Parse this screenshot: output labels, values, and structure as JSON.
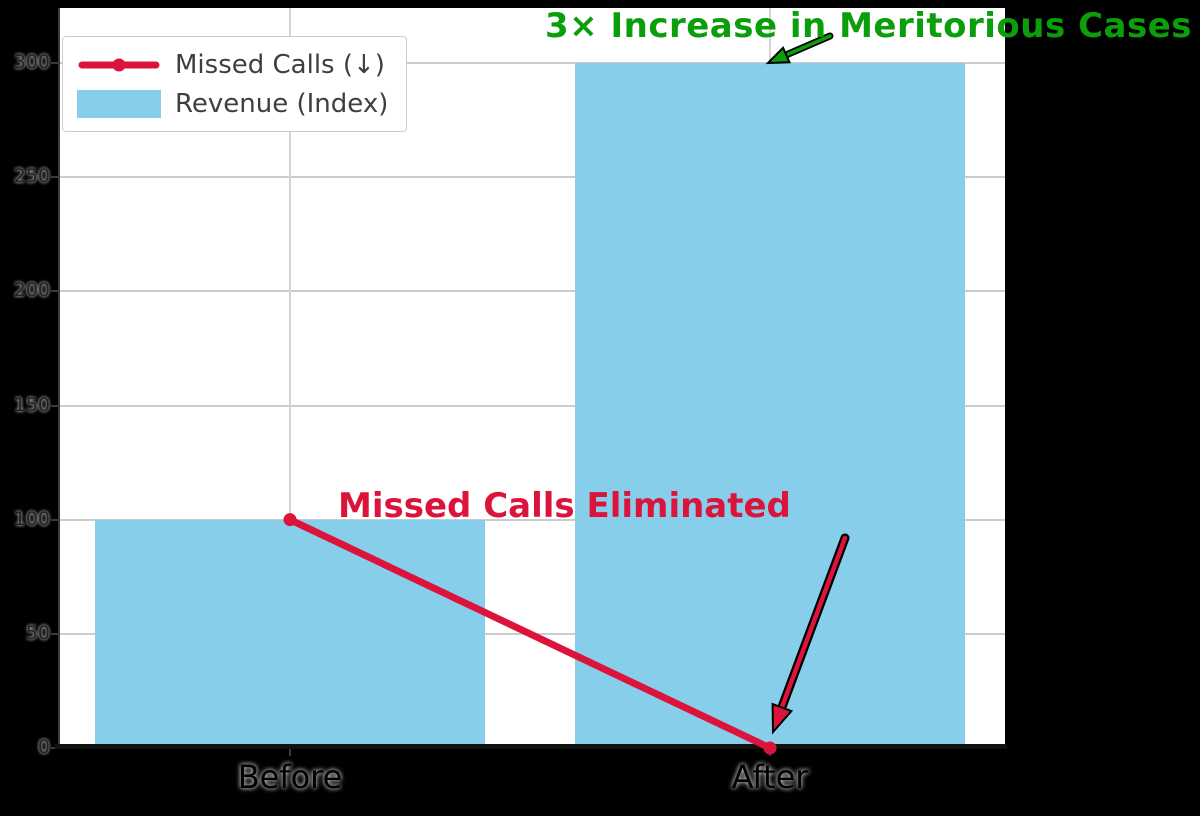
{
  "chart_data": {
    "type": "bar",
    "title": "",
    "xlabel": "",
    "ylabel": "",
    "categories": [
      "Before",
      "After"
    ],
    "series": [
      {
        "name": "Missed Calls (↓)",
        "type": "line",
        "values": [
          100,
          0
        ],
        "color": "#DC143C"
      },
      {
        "name": "Revenue (Index)",
        "type": "bar",
        "values": [
          100,
          300
        ],
        "color": "#87CEEB"
      }
    ],
    "yticks": [
      0,
      50,
      100,
      150,
      200,
      250,
      300
    ],
    "ylim": [
      0,
      324
    ],
    "grid": true,
    "legend_position": "upper left",
    "annotations": [
      {
        "text": "3× Increase in Meritorious Cases",
        "color": "#0b9e0b",
        "arrow_color": "#0b9e0b",
        "points_to": {
          "category": "After",
          "value": 300
        }
      },
      {
        "text": "Missed Calls Eliminated",
        "color": "#DC143C",
        "arrow_color": "#DC143C",
        "points_to": {
          "category": "After",
          "value": 0
        }
      }
    ]
  }
}
